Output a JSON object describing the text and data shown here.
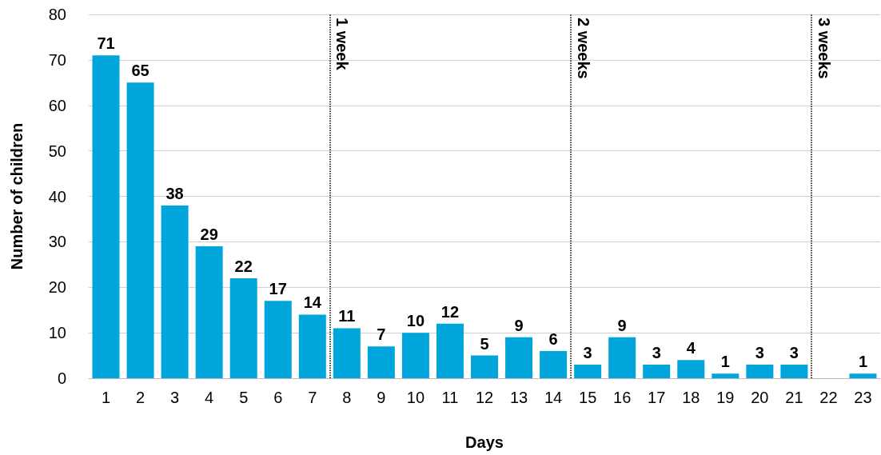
{
  "chart_data": {
    "type": "bar",
    "xlabel": "Days",
    "ylabel": "Number of children",
    "x": [
      1,
      2,
      3,
      4,
      5,
      6,
      7,
      8,
      9,
      10,
      11,
      12,
      13,
      14,
      15,
      16,
      17,
      18,
      19,
      20,
      21,
      22,
      23
    ],
    "values": [
      71,
      65,
      38,
      29,
      22,
      17,
      14,
      11,
      7,
      10,
      12,
      5,
      9,
      6,
      3,
      9,
      3,
      4,
      1,
      3,
      3,
      0,
      1
    ],
    "value_labels": [
      "71",
      "65",
      "38",
      "29",
      "22",
      "17",
      "14",
      "11",
      "7",
      "10",
      "12",
      "5",
      "9",
      "6",
      "3",
      "9",
      "3",
      "4",
      "1",
      "3",
      "3",
      null,
      "1"
    ],
    "color": "#00a5db",
    "xlim": [
      0.5,
      23.5
    ],
    "xticks": [
      1,
      2,
      3,
      4,
      5,
      6,
      7,
      8,
      9,
      10,
      11,
      12,
      13,
      14,
      15,
      16,
      17,
      18,
      19,
      20,
      21,
      22,
      23
    ],
    "ylim": [
      0,
      80
    ],
    "yticks": [
      0,
      10,
      20,
      30,
      40,
      50,
      60,
      70,
      80
    ],
    "grid": "y",
    "ref_lines": [
      {
        "axis": "x",
        "value": 7.5,
        "label": "1 week",
        "color": "#000000",
        "line_style": "dotted"
      },
      {
        "axis": "x",
        "value": 14.5,
        "label": "2 weeks",
        "color": "#000000",
        "line_style": "dotted"
      },
      {
        "axis": "x",
        "value": 21.5,
        "label": "3 weeks",
        "color": "#000000",
        "line_style": "dotted"
      }
    ]
  }
}
